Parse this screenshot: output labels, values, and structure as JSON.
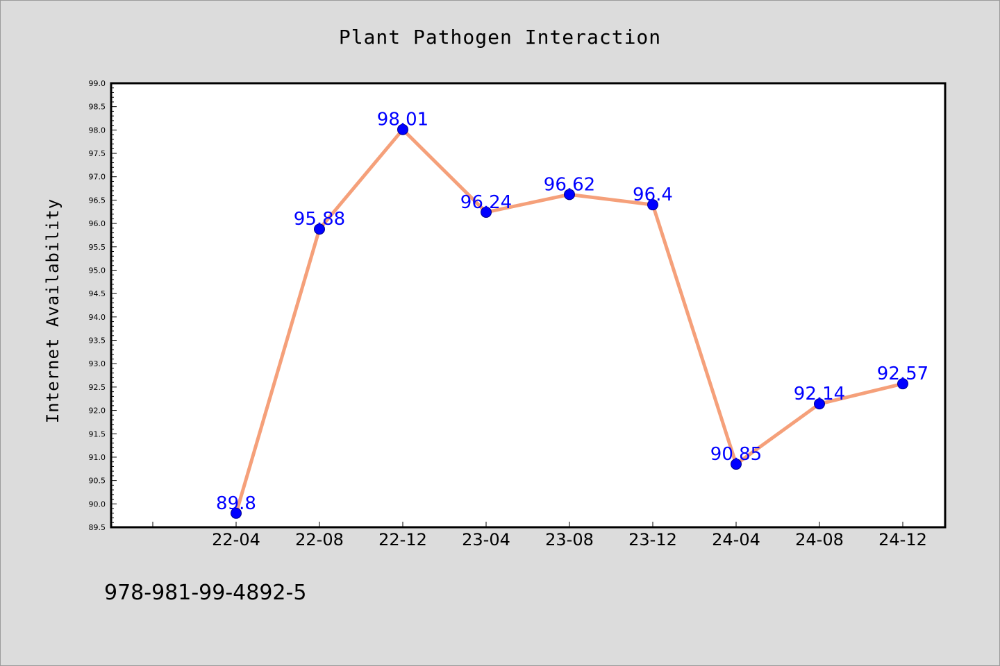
{
  "chart_data": {
    "type": "line",
    "title": "Plant Pathogen Interaction",
    "xlabel": "",
    "ylabel": "Internet Availability",
    "categories": [
      "22-04",
      "22-08",
      "22-12",
      "23-04",
      "23-08",
      "23-12",
      "24-04",
      "24-08",
      "24-12"
    ],
    "series": [
      {
        "values": [
          89.8,
          95.88,
          98.01,
          96.24,
          96.62,
          96.4,
          90.85,
          92.14,
          92.57
        ],
        "labels": [
          "89.8",
          "95.88",
          "98.01",
          "96.24",
          "96.62",
          "96.4",
          "90.85",
          "92.14",
          "92.57"
        ],
        "line_color": "#f5a07a",
        "marker_color": "#0000ff"
      }
    ],
    "ylim": [
      89.5,
      99.0
    ],
    "yticks": [
      "89.5",
      "90.0",
      "90.5",
      "91.0",
      "91.5",
      "92.0",
      "92.5",
      "93.0",
      "93.5",
      "94.0",
      "94.5",
      "95.0",
      "95.5",
      "96.0",
      "96.5",
      "97.0",
      "97.5",
      "98.0",
      "98.5",
      "99.0"
    ],
    "grid": false,
    "legend": "none"
  },
  "footnote": "978-981-99-4892-5",
  "colors": {
    "background": "#dcdcdc",
    "plot_background": "#ffffff",
    "line": "#f5a07a",
    "marker": "#0000ff",
    "data_label": "#0000ff"
  }
}
